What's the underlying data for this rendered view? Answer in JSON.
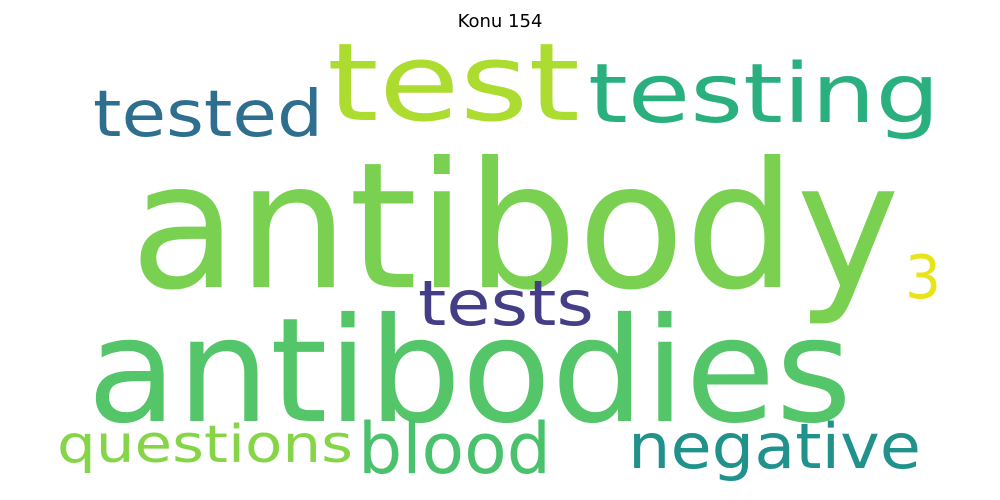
{
  "title": "Konu 154",
  "words": [
    {
      "text": "antibody",
      "color": "#7ad151"
    },
    {
      "text": "antibodies",
      "color": "#54c568"
    },
    {
      "text": "test",
      "color": "#addc30"
    },
    {
      "text": "testing",
      "color": "#2ab07f"
    },
    {
      "text": "tested",
      "color": "#2e6e8e"
    },
    {
      "text": "tests",
      "color": "#433e85"
    },
    {
      "text": "3",
      "color": "#e7e419"
    },
    {
      "text": "questions",
      "color": "#86d549"
    },
    {
      "text": "blood",
      "color": "#4ac16d"
    },
    {
      "text": "negative",
      "color": "#21918c"
    }
  ]
}
